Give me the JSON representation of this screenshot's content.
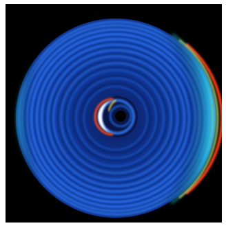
{
  "image": {
    "subject": "ring-interference-pattern",
    "colors": {
      "background": "#000000",
      "outer_ring": "#1b4bd0",
      "inner_ring_dark": "#0a1a66",
      "cyan_fringe": "#27c6f0",
      "hot_edge": "#ff3a12",
      "hot_core": "#ffffff",
      "yellow": "#ffe24a",
      "green": "#6af060"
    }
  }
}
